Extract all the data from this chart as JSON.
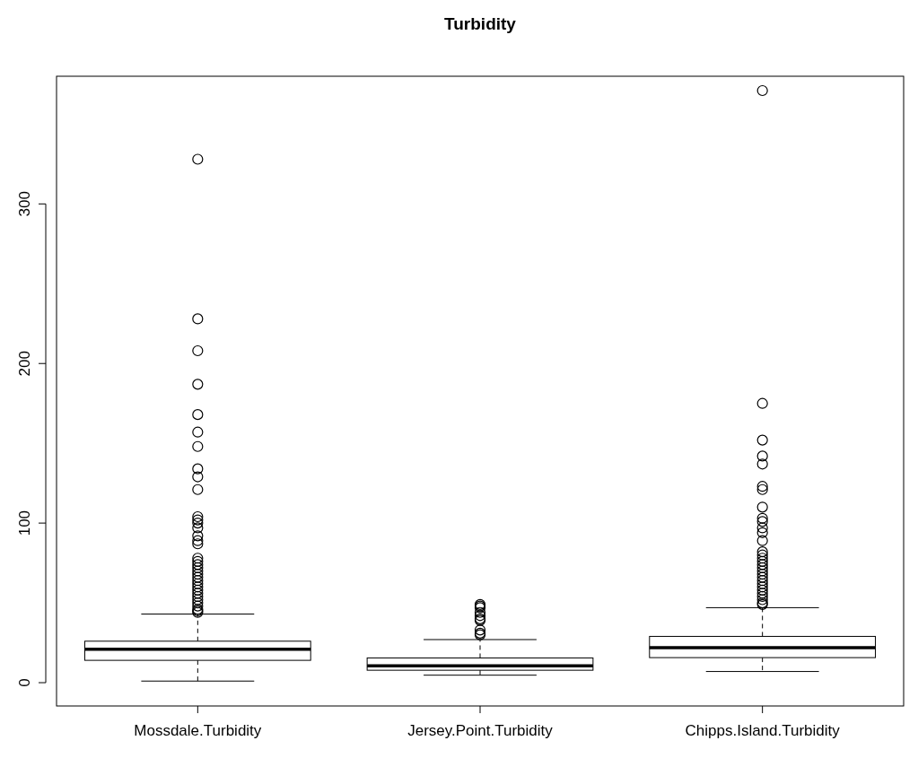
{
  "chart_data": {
    "type": "box",
    "title": "Turbidity",
    "categories": [
      "Mossdale.Turbidity",
      "Jersey.Point.Turbidity",
      "Chipps.Island.Turbidity"
    ],
    "ylim": [
      -14.6,
      380
    ],
    "yticks": [
      0,
      100,
      200,
      300
    ],
    "grid": false,
    "marker": "circle",
    "boxes": [
      {
        "low": 1,
        "q1": 14,
        "median": 21,
        "q3": 26,
        "high": 43,
        "outliers": [
          328,
          228,
          208,
          187,
          168,
          157,
          148,
          134,
          129,
          121,
          104,
          102,
          100,
          97,
          92,
          89,
          87,
          78,
          76,
          74,
          72,
          70,
          68,
          66,
          64,
          62,
          60,
          58,
          56,
          54,
          52,
          50,
          48,
          46,
          45,
          44
        ]
      },
      {
        "low": 4.7,
        "q1": 7.8,
        "median": 10.6,
        "q3": 15.5,
        "high": 27,
        "outliers": [
          49,
          48,
          47,
          44,
          42,
          40,
          39,
          33,
          31,
          30
        ]
      },
      {
        "low": 7,
        "q1": 15.7,
        "median": 22,
        "q3": 29,
        "high": 47,
        "outliers": [
          371,
          175,
          152,
          142,
          137,
          123,
          121,
          110,
          103,
          101,
          97,
          94,
          89,
          82,
          80,
          78,
          76,
          74,
          72,
          70,
          68,
          66,
          64,
          62,
          60,
          58,
          56,
          54,
          52,
          50,
          49
        ]
      }
    ]
  }
}
